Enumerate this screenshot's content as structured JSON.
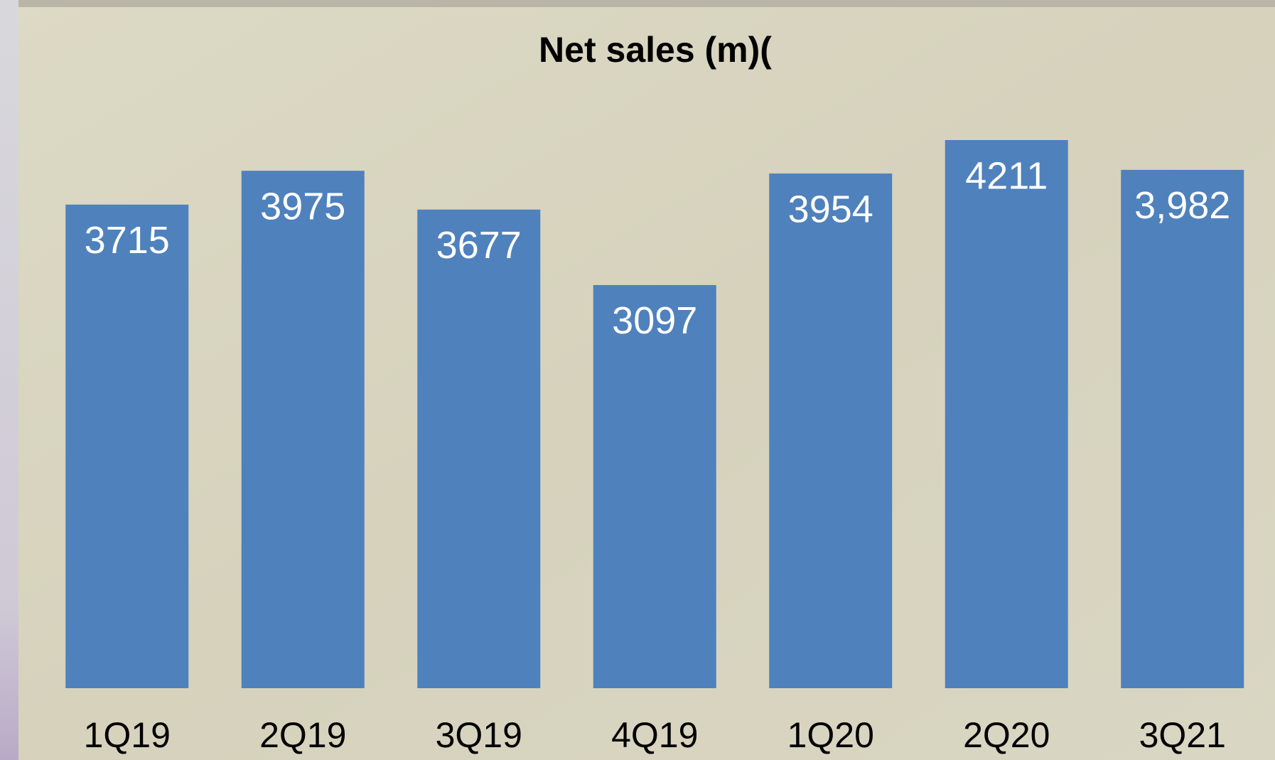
{
  "chart_data": {
    "type": "bar",
    "title": "Net sales (m)(",
    "categories": [
      "1Q19",
      "2Q19",
      "3Q19",
      "4Q19",
      "1Q20",
      "2Q20",
      "3Q21"
    ],
    "values": [
      3715,
      3975,
      3677,
      3097,
      3954,
      4211,
      3982
    ],
    "value_labels": [
      "3715",
      "3975",
      "3677",
      "3097",
      "3954",
      "4211",
      "3,982"
    ],
    "color": "#4f81bd"
  }
}
